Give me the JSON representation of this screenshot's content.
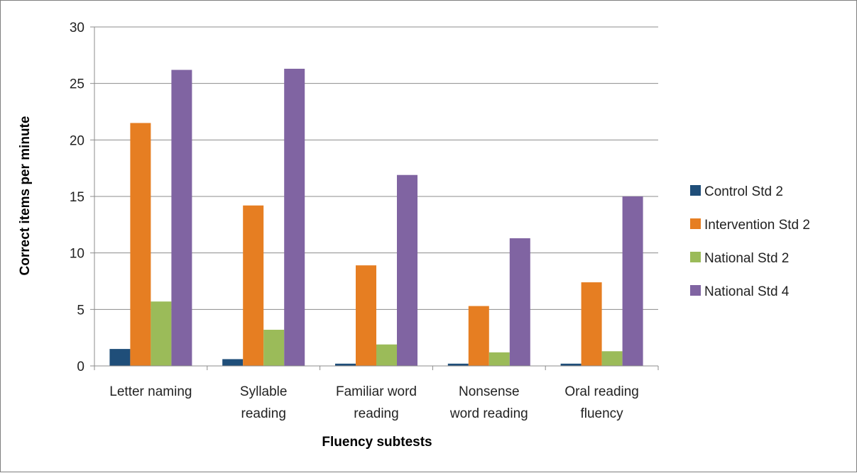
{
  "chart_data": {
    "type": "bar",
    "title": "",
    "xlabel": "Fluency subtests",
    "ylabel": "Correct items per minute",
    "ylim": [
      0,
      30
    ],
    "yticks": [
      0,
      5,
      10,
      15,
      20,
      25,
      30
    ],
    "grid": true,
    "legend_position": "right",
    "categories": [
      [
        "Letter naming"
      ],
      [
        "Syllable",
        "reading"
      ],
      [
        "Familiar word",
        "reading"
      ],
      [
        "Nonsense",
        "word reading"
      ],
      [
        "Oral reading",
        "fluency"
      ]
    ],
    "series": [
      {
        "name": "Control Std 2",
        "color": "#1f4e79",
        "values": [
          1.5,
          0.6,
          0.2,
          0.2,
          0.2
        ]
      },
      {
        "name": "Intervention Std 2",
        "color": "#e67e22",
        "values": [
          21.5,
          14.2,
          8.9,
          5.3,
          7.4
        ]
      },
      {
        "name": "National Std 2",
        "color": "#9bbb59",
        "values": [
          5.7,
          3.2,
          1.9,
          1.2,
          1.3
        ]
      },
      {
        "name": "National Std 4",
        "color": "#8064a2",
        "values": [
          26.2,
          26.3,
          16.9,
          11.3,
          15.0
        ]
      }
    ]
  }
}
